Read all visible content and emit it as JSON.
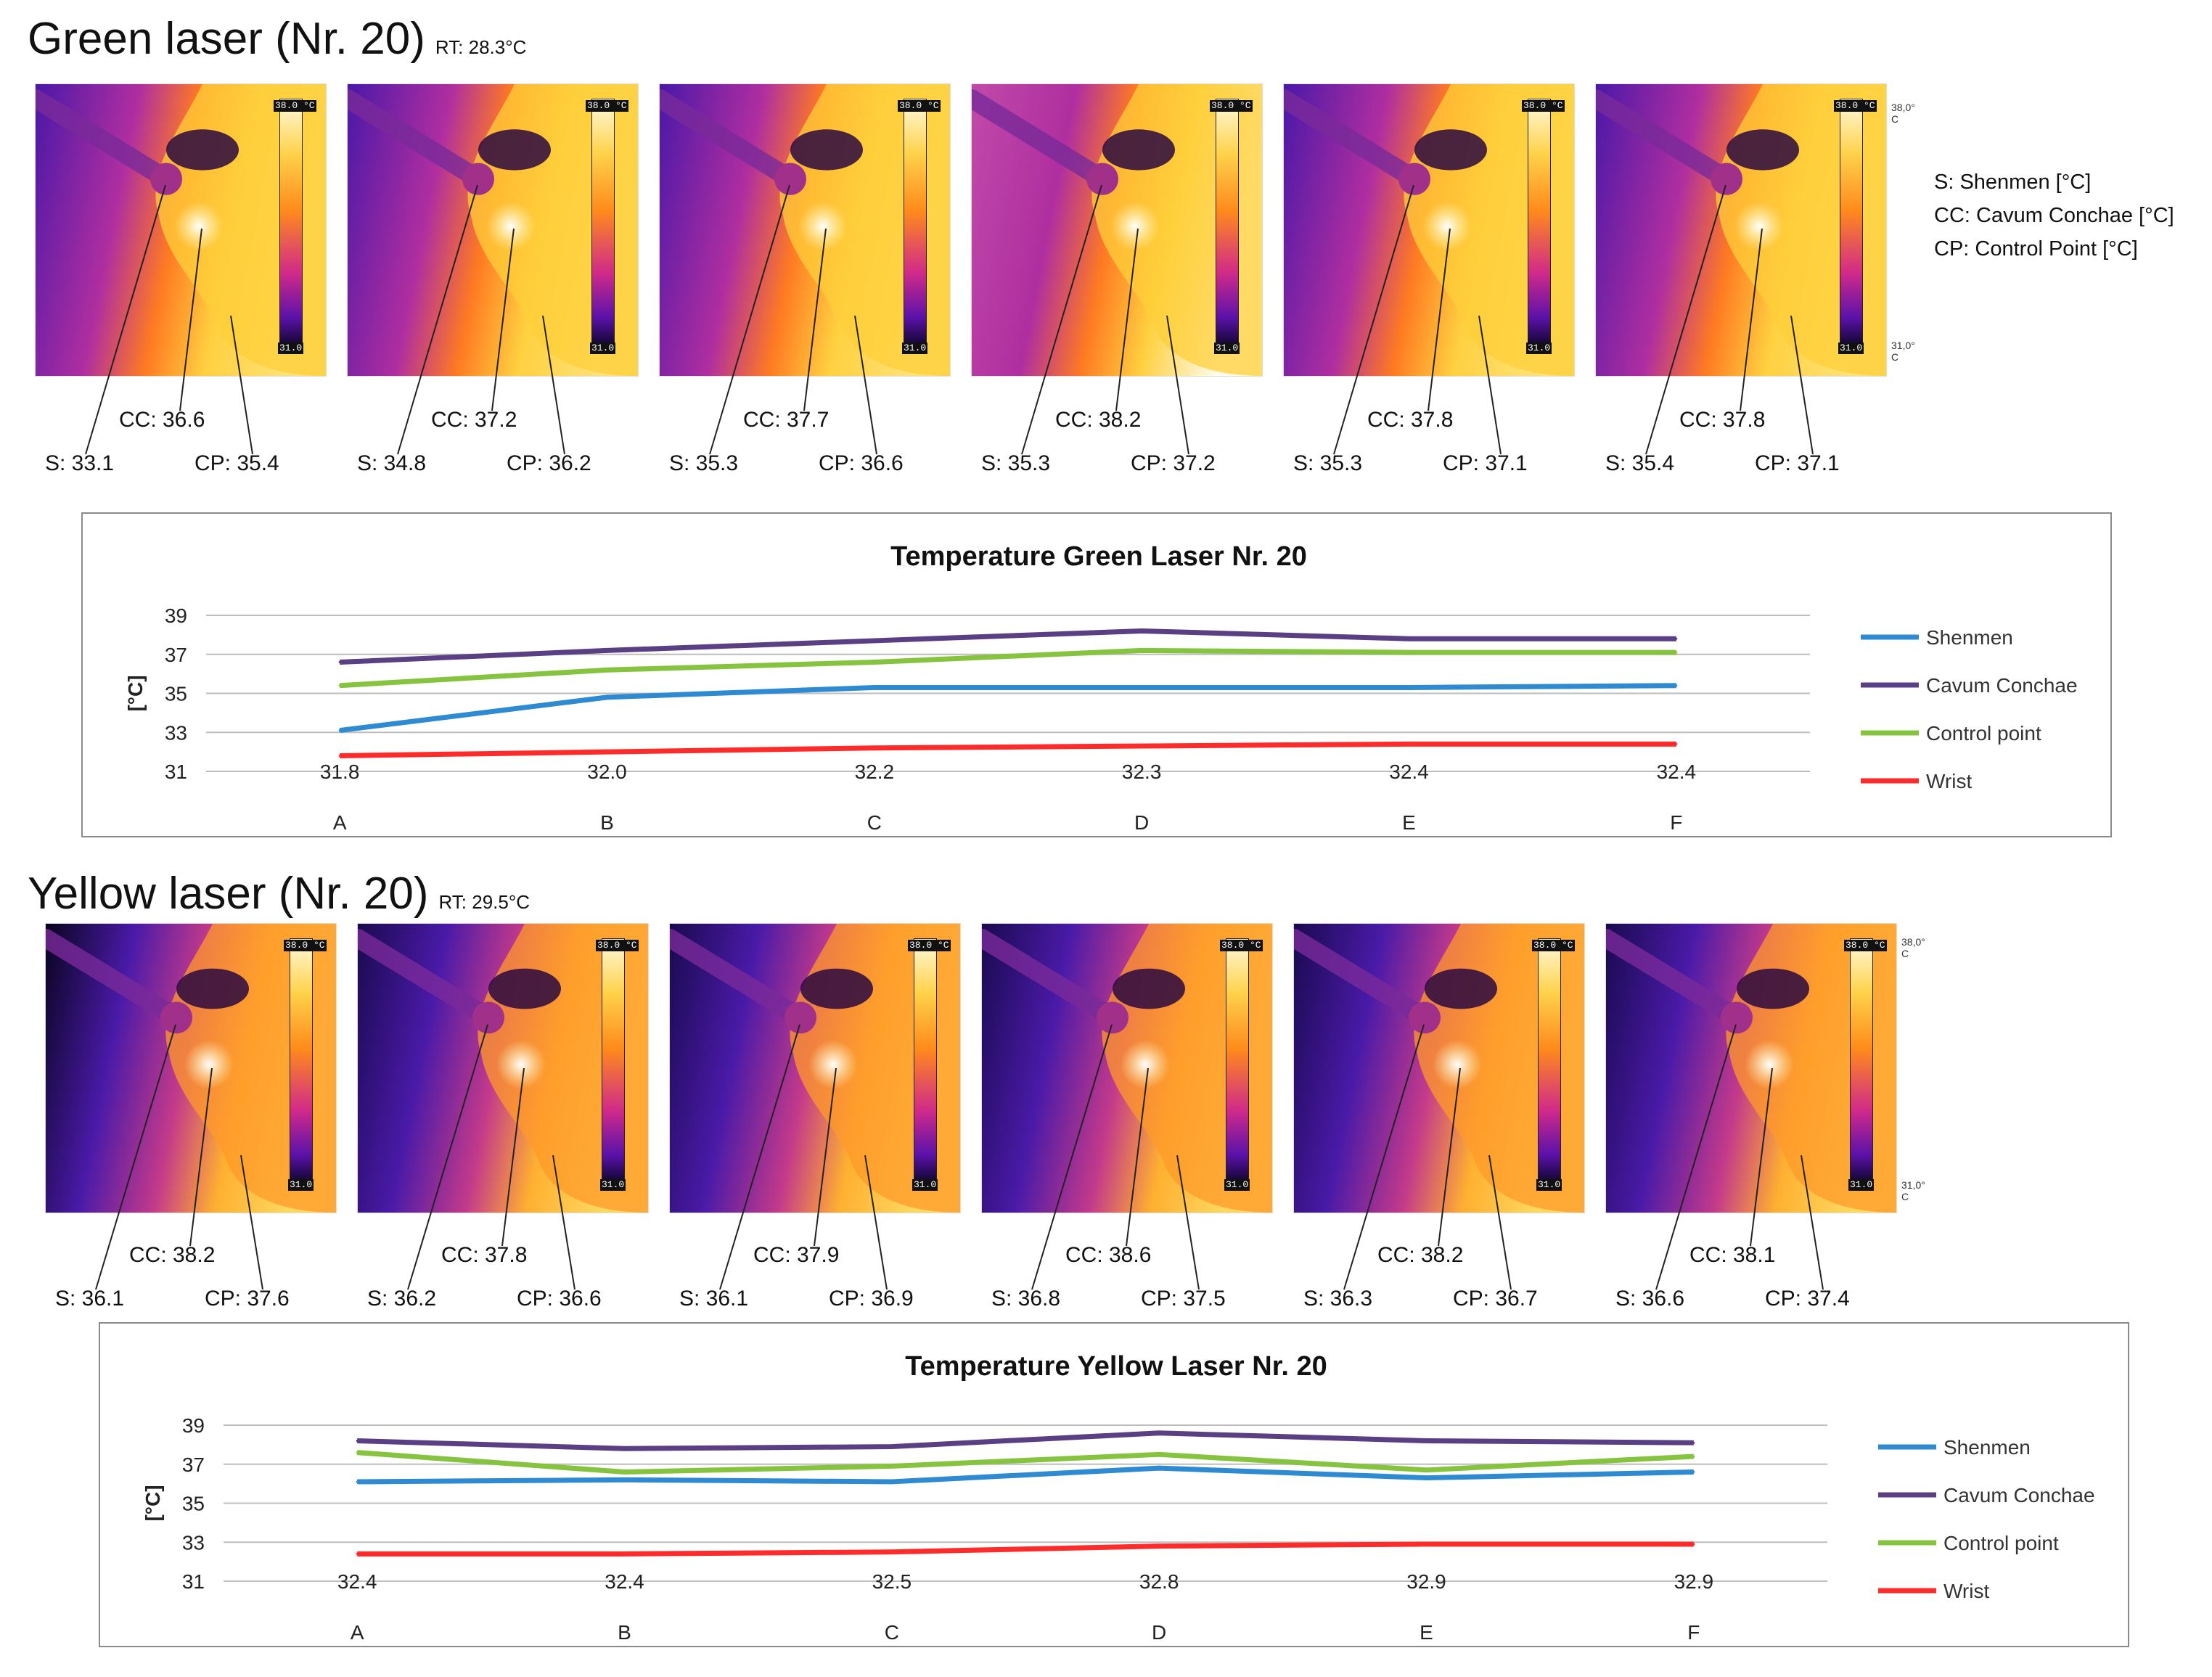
{
  "colors": {
    "Shenmen": "#2e8bd2",
    "Cavum Conchae": "#5a3f84",
    "Control point": "#86c440",
    "Wrist": "#ff2a2a",
    "thermal_scale": [
      "#0a0525",
      "#5a12a8",
      "#d02a8a",
      "#ff8a1c",
      "#ffd24a",
      "#fffbe0"
    ]
  },
  "legend_key": {
    "lines": [
      "S: Shenmen [°C]",
      "CC: Cavum Conchae [°C]",
      "CP: Control Point [°C]"
    ]
  },
  "scale": {
    "top": "38.0 °C",
    "bottom": "31.0",
    "ext_top": [
      "38,0°",
      "C"
    ],
    "ext_bottom": [
      "31,0°",
      "C"
    ]
  },
  "sections": [
    {
      "title": "Green laser (Nr. 20)",
      "rt": "RT: 28.3°C",
      "images": [
        {
          "cc": "CC: 36.6",
          "s": "S: 33.1",
          "cp": "CP: 35.4"
        },
        {
          "cc": "CC: 37.2",
          "s": "S: 34.8",
          "cp": "CP: 36.2"
        },
        {
          "cc": "CC: 37.7",
          "s": "S: 35.3",
          "cp": "CP: 36.6"
        },
        {
          "cc": "CC: 38.2",
          "s": "S: 35.3",
          "cp": "CP: 37.2"
        },
        {
          "cc": "CC: 37.8",
          "s": "S: 35.3",
          "cp": "CP: 37.1"
        },
        {
          "cc": "CC: 37.8",
          "s": "S: 35.4",
          "cp": "CP: 37.1"
        }
      ]
    },
    {
      "title": "Yellow laser (Nr. 20)",
      "rt": "RT: 29.5°C",
      "images": [
        {
          "cc": "CC: 38.2",
          "s": "S: 36.1",
          "cp": "CP: 37.6"
        },
        {
          "cc": "CC: 37.8",
          "s": "S: 36.2",
          "cp": "CP: 36.6"
        },
        {
          "cc": "CC: 37.9",
          "s": "S: 36.1",
          "cp": "CP: 36.9"
        },
        {
          "cc": "CC: 38.6",
          "s": "S: 36.8",
          "cp": "CP: 37.5"
        },
        {
          "cc": "CC: 38.2",
          "s": "S: 36.3",
          "cp": "CP: 36.7"
        },
        {
          "cc": "CC: 38.1",
          "s": "S: 36.6",
          "cp": "CP: 37.4"
        }
      ]
    }
  ],
  "chart_data": [
    {
      "type": "line",
      "title": "Temperature Green Laser Nr. 20",
      "ylabel": "[°C]",
      "xlabel": "",
      "ylim": [
        31,
        39
      ],
      "yticks": [
        31,
        33,
        35,
        37,
        39
      ],
      "grid": true,
      "legend": "right",
      "categories": [
        "A",
        "B",
        "C",
        "D",
        "E",
        "F"
      ],
      "series": [
        {
          "name": "Shenmen",
          "values": [
            33.1,
            34.8,
            35.3,
            35.3,
            35.3,
            35.4
          ]
        },
        {
          "name": "Cavum Conchae",
          "values": [
            36.6,
            37.2,
            37.7,
            38.2,
            37.8,
            37.8
          ]
        },
        {
          "name": "Control point",
          "values": [
            35.4,
            36.2,
            36.6,
            37.2,
            37.1,
            37.1
          ]
        },
        {
          "name": "Wrist",
          "values": [
            31.8,
            32.0,
            32.2,
            32.3,
            32.4,
            32.4
          ],
          "data_labels": [
            "31.8",
            "32.0",
            "32.2",
            "32.3",
            "32.4",
            "32.4"
          ]
        }
      ]
    },
    {
      "type": "line",
      "title": "Temperature Yellow Laser Nr. 20",
      "ylabel": "[°C]",
      "xlabel": "",
      "ylim": [
        31,
        39
      ],
      "yticks": [
        31,
        33,
        35,
        37,
        39
      ],
      "grid": true,
      "legend": "right",
      "categories": [
        "A",
        "B",
        "C",
        "D",
        "E",
        "F"
      ],
      "series": [
        {
          "name": "Shenmen",
          "values": [
            36.1,
            36.2,
            36.1,
            36.8,
            36.3,
            36.6
          ]
        },
        {
          "name": "Cavum Conchae",
          "values": [
            38.2,
            37.8,
            37.9,
            38.6,
            38.2,
            38.1
          ]
        },
        {
          "name": "Control point",
          "values": [
            37.6,
            36.6,
            36.9,
            37.5,
            36.7,
            37.4
          ]
        },
        {
          "name": "Wrist",
          "values": [
            32.4,
            32.4,
            32.5,
            32.8,
            32.9,
            32.9
          ],
          "data_labels": [
            "32.4",
            "32.4",
            "32.5",
            "32.8",
            "32.9",
            "32.9"
          ]
        }
      ]
    }
  ]
}
